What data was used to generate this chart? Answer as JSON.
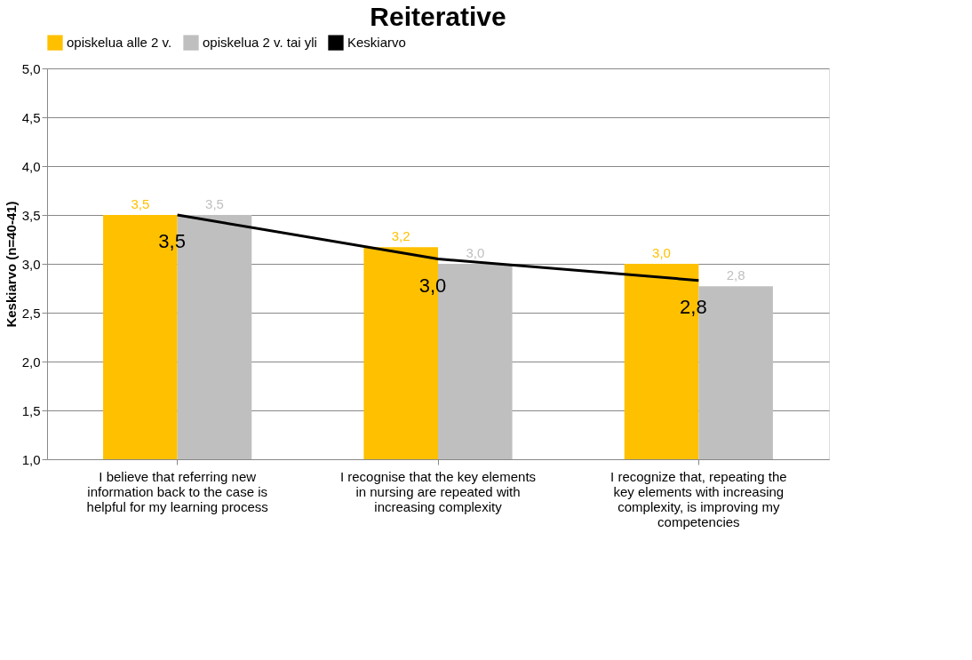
{
  "chart_data": {
    "type": "bar",
    "title": "Reiterative",
    "ylabel": "Keskiarvo (n=40-41)",
    "categories": [
      "I believe that referring new information back to the case is helpful for my learning process",
      "I recognise that the key elements in nursing are repeated with increasing complexity",
      "I recognize that, repeating the key elements with increasing complexity, is improving my competencies"
    ],
    "series": [
      {
        "name": "opiskelua alle 2 v.",
        "color": "#ffc000",
        "values": [
          3.5,
          3.17,
          3.0
        ],
        "value_labels": [
          "3,5",
          "3,2",
          "3,0"
        ]
      },
      {
        "name": "opiskelua 2 v. tai yli",
        "color": "#bfbfbf",
        "values": [
          3.5,
          3.0,
          2.77
        ],
        "value_labels": [
          "3,5",
          "3,0",
          "2,8"
        ]
      },
      {
        "name": "Keskiarvo",
        "type": "line",
        "color": "#000000",
        "values": [
          3.5,
          3.05,
          2.83
        ],
        "value_labels": [
          "3,5",
          "3,0",
          "2,8"
        ]
      }
    ],
    "ylim": [
      1.0,
      5.0
    ],
    "yticks": [
      {
        "value": 1,
        "label": "1,0"
      },
      {
        "value": 1.5,
        "label": "1,5"
      },
      {
        "value": 2,
        "label": "2,0"
      },
      {
        "value": 2.5,
        "label": "2,5"
      },
      {
        "value": 3,
        "label": "3,0"
      },
      {
        "value": 3.5,
        "label": "3,5"
      },
      {
        "value": 4,
        "label": "4,0"
      },
      {
        "value": 4.5,
        "label": "4,5"
      },
      {
        "value": 5,
        "label": "5,0"
      }
    ],
    "grid": "y",
    "legend": "top",
    "marker": "none",
    "line_style": "solid"
  }
}
